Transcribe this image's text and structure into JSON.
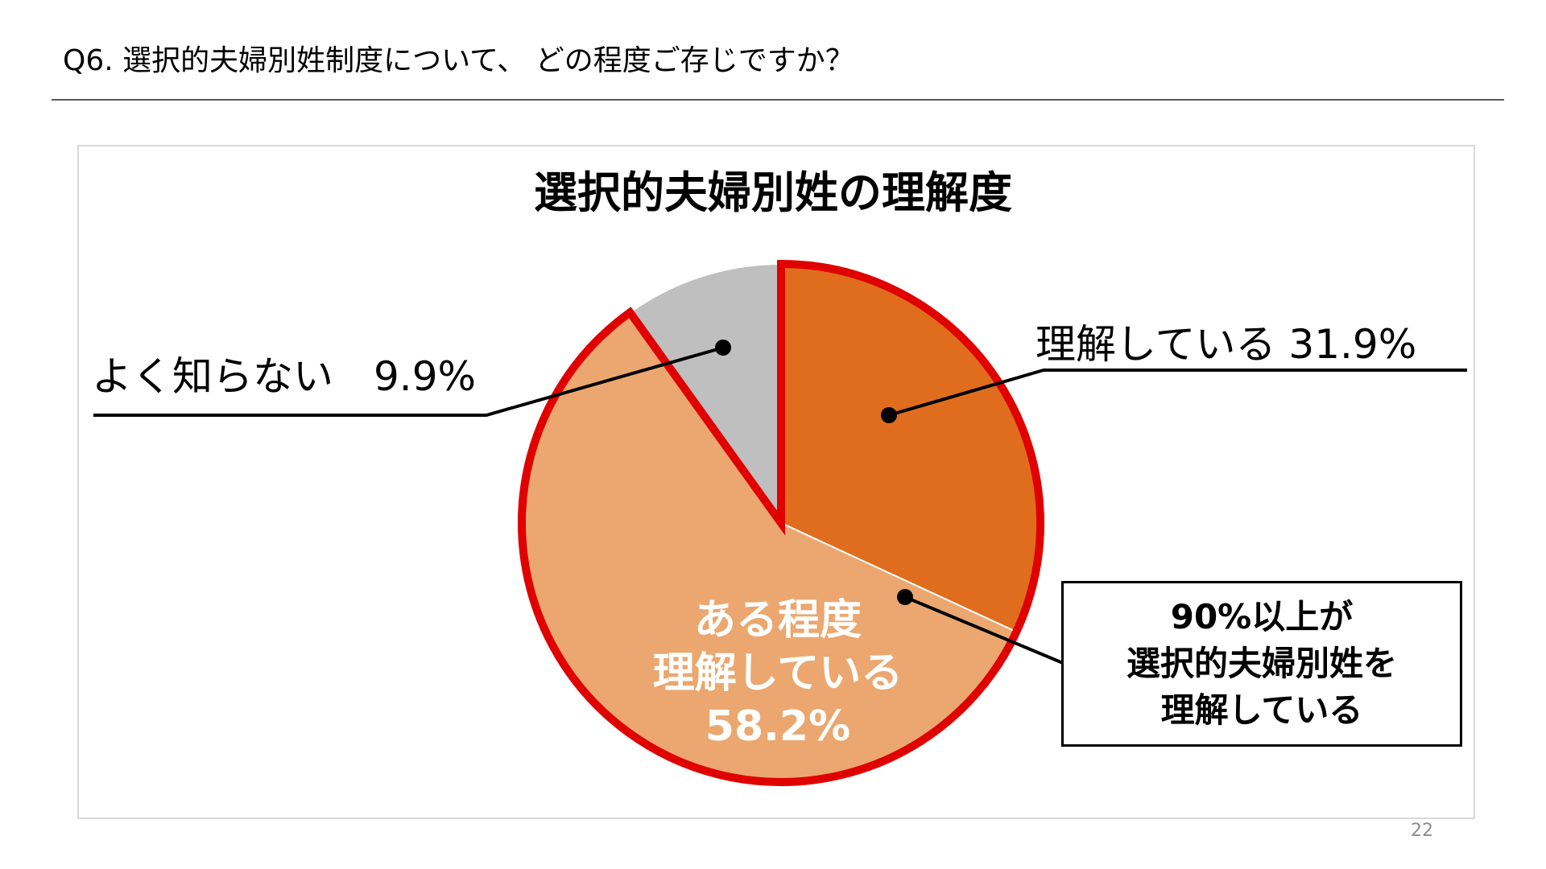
{
  "header": {
    "question": "Q6.  選択的夫婦別姓制度について、 どの程度ご存じですか？"
  },
  "chart_data": {
    "type": "pie",
    "title": "選択的夫婦別姓の理解度",
    "slices": [
      {
        "label": "理解している",
        "value": 31.9,
        "display": "理解している 31.9%",
        "color": "#e06d1e"
      },
      {
        "label": "ある程度理解している",
        "value": 58.2,
        "lines": [
          "ある程度",
          "理解している",
          "58.2%"
        ],
        "color": "#eba76f"
      },
      {
        "label": "よく知らない",
        "value": 9.9,
        "display": "よく知らない　9.9%",
        "color": "#bfbfbf"
      }
    ],
    "highlight_color": "#e00000",
    "summary_lines": [
      "90%以上が",
      "選択的夫婦別姓を",
      "理解している"
    ]
  },
  "footer": {
    "page_number": "22"
  }
}
